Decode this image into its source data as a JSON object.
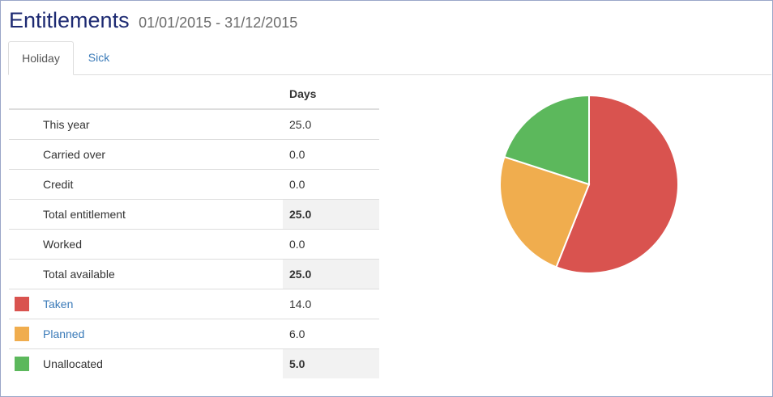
{
  "header": {
    "title": "Entitlements",
    "date_range": "01/01/2015 - 31/12/2015"
  },
  "tabs": [
    {
      "label": "Holiday",
      "active": true
    },
    {
      "label": "Sick",
      "active": false
    }
  ],
  "table": {
    "column_header": "Days",
    "rows": [
      {
        "label": "This year",
        "value": "25.0"
      },
      {
        "label": "Carried over",
        "value": "0.0"
      },
      {
        "label": "Credit",
        "value": "0.0"
      },
      {
        "label": "Total entitlement",
        "value": "25.0"
      },
      {
        "label": "Worked",
        "value": "0.0"
      },
      {
        "label": "Total available",
        "value": "25.0"
      },
      {
        "label": "Taken",
        "value": "14.0"
      },
      {
        "label": "Planned",
        "value": "6.0"
      },
      {
        "label": "Unallocated",
        "value": "5.0"
      }
    ]
  },
  "colors": {
    "taken": "#d9534f",
    "planned": "#f0ad4e",
    "unallocated": "#5cb85c",
    "title": "#1d2a72",
    "link": "#3a7ab8"
  },
  "chart_data": {
    "type": "pie",
    "categories": [
      "Taken",
      "Planned",
      "Unallocated"
    ],
    "values": [
      14.0,
      6.0,
      5.0
    ],
    "colors": [
      "#d9534f",
      "#f0ad4e",
      "#5cb85c"
    ]
  }
}
